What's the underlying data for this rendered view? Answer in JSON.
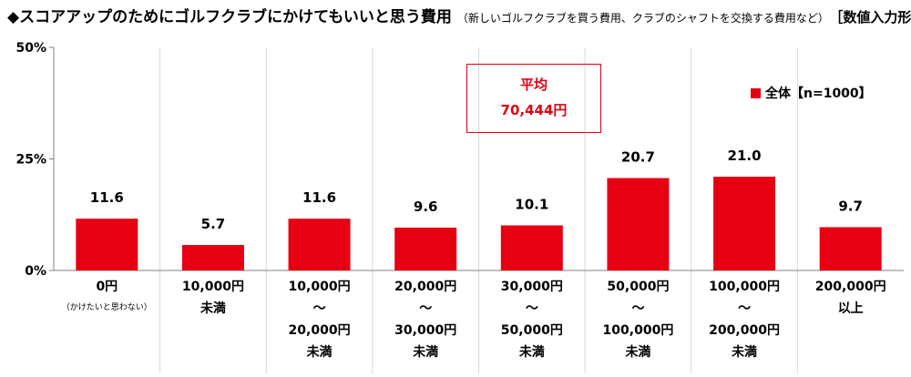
{
  "header": {
    "title": "◆スコアアップのためにゴルフクラブにかけてもいいと思う費用",
    "subtitle": "（新しいゴルフクラブを買う費用、クラブのシャフトを交換する費用など）",
    "format": "［数値入力形式］"
  },
  "average_box": {
    "label": "平均",
    "value": "70,444円"
  },
  "legend": {
    "label": "全体【n=1000】"
  },
  "colors": {
    "bar": "#e60012",
    "grid": "#d9d9d9",
    "axis": "#808080"
  },
  "chart_data": {
    "type": "bar",
    "ylim": [
      0,
      50
    ],
    "yticks": [
      {
        "value": 0,
        "label": "0%"
      },
      {
        "value": 25,
        "label": "25%"
      },
      {
        "value": 50,
        "label": "50%"
      }
    ],
    "grid": "vertical-separators",
    "legend_position": "top-right",
    "categories": [
      {
        "lines": [
          "0円"
        ],
        "note": "（かけたいと思わない）"
      },
      {
        "lines": [
          "10,000円",
          "未満"
        ]
      },
      {
        "lines": [
          "10,000円",
          "～",
          "20,000円",
          "未満"
        ]
      },
      {
        "lines": [
          "20,000円",
          "～",
          "30,000円",
          "未満"
        ]
      },
      {
        "lines": [
          "30,000円",
          "～",
          "50,000円",
          "未満"
        ]
      },
      {
        "lines": [
          "50,000円",
          "～",
          "100,000円",
          "未満"
        ]
      },
      {
        "lines": [
          "100,000円",
          "～",
          "200,000円",
          "未満"
        ]
      },
      {
        "lines": [
          "200,000円",
          "以上"
        ]
      }
    ],
    "series": [
      {
        "name": "全体【n=1000】",
        "values": [
          11.6,
          5.7,
          11.6,
          9.6,
          10.1,
          20.7,
          21.0,
          9.7
        ],
        "labels": [
          "11.6",
          "5.7",
          "11.6",
          "9.6",
          "10.1",
          "20.7",
          "21.0",
          "9.7"
        ]
      }
    ]
  }
}
